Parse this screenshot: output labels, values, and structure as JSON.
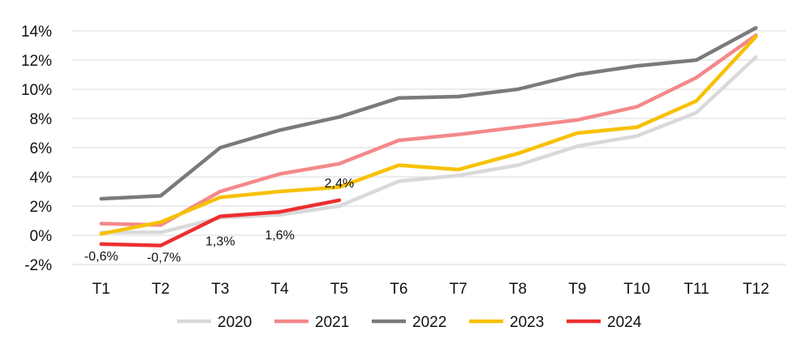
{
  "chart_data": {
    "type": "line",
    "title": "",
    "xlabel": "",
    "ylabel": "",
    "categories": [
      "T1",
      "T2",
      "T3",
      "T4",
      "T5",
      "T6",
      "T7",
      "T8",
      "T9",
      "T10",
      "T11",
      "T12"
    ],
    "y_ticks": [
      {
        "value": -2,
        "label": "-2%"
      },
      {
        "value": 0,
        "label": "0%"
      },
      {
        "value": 2,
        "label": "2%"
      },
      {
        "value": 4,
        "label": "4%"
      },
      {
        "value": 6,
        "label": "6%"
      },
      {
        "value": 8,
        "label": "8%"
      },
      {
        "value": 10,
        "label": "10%"
      },
      {
        "value": 12,
        "label": "12%"
      },
      {
        "value": 14,
        "label": "14%"
      }
    ],
    "ylim": [
      -2,
      14
    ],
    "grid": true,
    "legend_position": "bottom",
    "series": [
      {
        "name": "2020",
        "color": "#d9d9d9",
        "values": [
          0.2,
          0.2,
          1.2,
          1.4,
          2.0,
          3.7,
          4.1,
          4.8,
          6.1,
          6.8,
          8.4,
          12.2
        ]
      },
      {
        "name": "2021",
        "color": "#f4888a",
        "values": [
          0.8,
          0.7,
          3.0,
          4.2,
          4.9,
          6.5,
          6.9,
          7.4,
          7.9,
          8.8,
          10.8,
          13.7
        ]
      },
      {
        "name": "2022",
        "color": "#7a7a7a",
        "values": [
          2.5,
          2.7,
          6.0,
          7.2,
          8.1,
          9.4,
          9.5,
          10.0,
          11.0,
          11.6,
          12.0,
          14.2
        ]
      },
      {
        "name": "2023",
        "color": "#f7c100",
        "values": [
          0.1,
          0.9,
          2.6,
          3.0,
          3.3,
          4.8,
          4.5,
          5.6,
          7.0,
          7.4,
          9.2,
          13.6
        ]
      },
      {
        "name": "2024",
        "color": "#ed2f2f",
        "values": [
          -0.6,
          -0.7,
          1.3,
          1.6,
          2.4,
          null,
          null,
          null,
          null,
          null,
          null,
          null
        ]
      }
    ],
    "data_labels": [
      {
        "series": "2024",
        "index": 0,
        "label": "-0,6%"
      },
      {
        "series": "2024",
        "index": 1,
        "label": "-0,7%"
      },
      {
        "series": "2024",
        "index": 2,
        "label": "1,3%"
      },
      {
        "series": "2024",
        "index": 3,
        "label": "1,6%"
      },
      {
        "series": "2024",
        "index": 4,
        "label": "2,4%"
      }
    ]
  }
}
